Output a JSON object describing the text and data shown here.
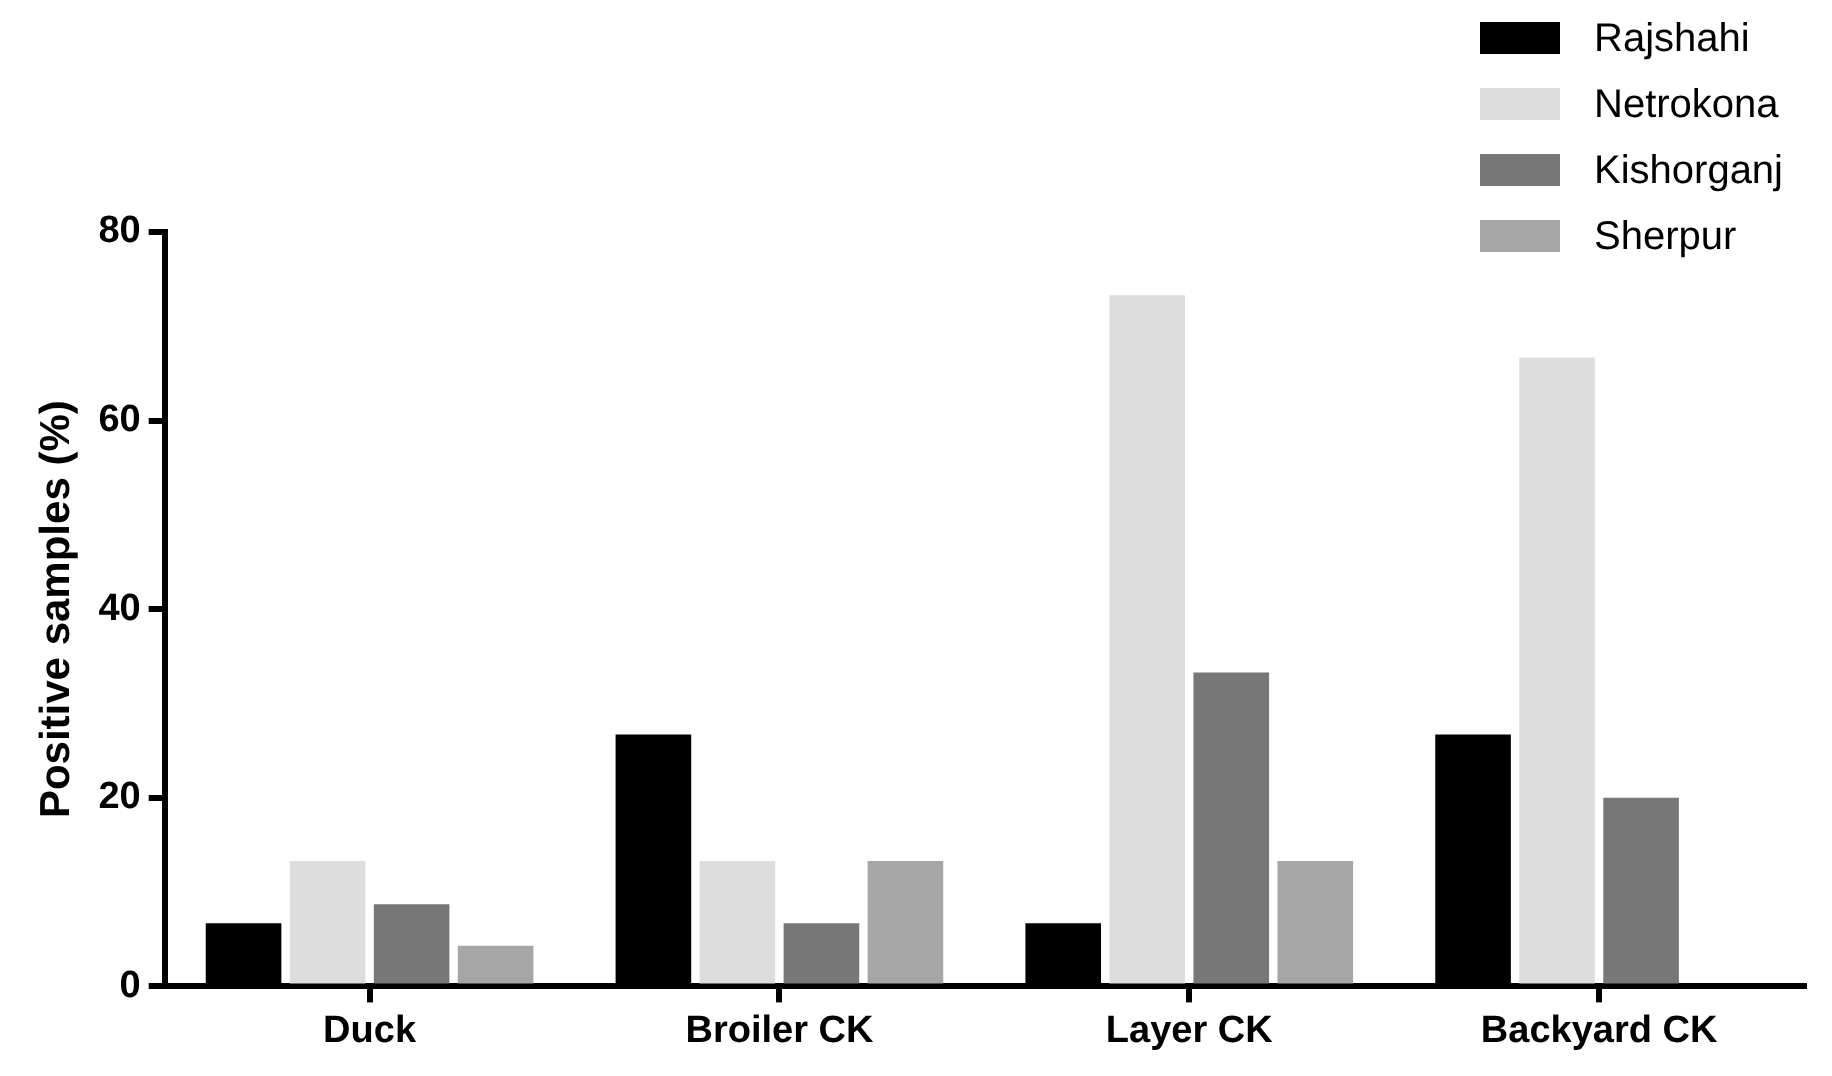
{
  "chart_data": {
    "type": "bar",
    "ylabel": "Positive samples (%)",
    "categories": [
      "Duck",
      "Broiler CK",
      "Layer CK",
      "Backyard CK"
    ],
    "series": [
      {
        "name": "Rajshahi",
        "color": "#000000",
        "values": [
          6.7,
          26.7,
          6.7,
          26.7
        ]
      },
      {
        "name": "Netrokona",
        "color": "#dddddd",
        "values": [
          13.3,
          13.3,
          73.3,
          66.7
        ]
      },
      {
        "name": "Kishorganj",
        "color": "#777777",
        "values": [
          8.7,
          6.7,
          33.3,
          20
        ]
      },
      {
        "name": "Sherpur",
        "color": "#a6a6a6",
        "values": [
          4.3,
          13.3,
          13.3,
          0
        ]
      }
    ],
    "ylim": [
      0,
      80
    ],
    "yticks": [
      0,
      20,
      40,
      60,
      80
    ],
    "grid": false,
    "legend": "top right"
  }
}
